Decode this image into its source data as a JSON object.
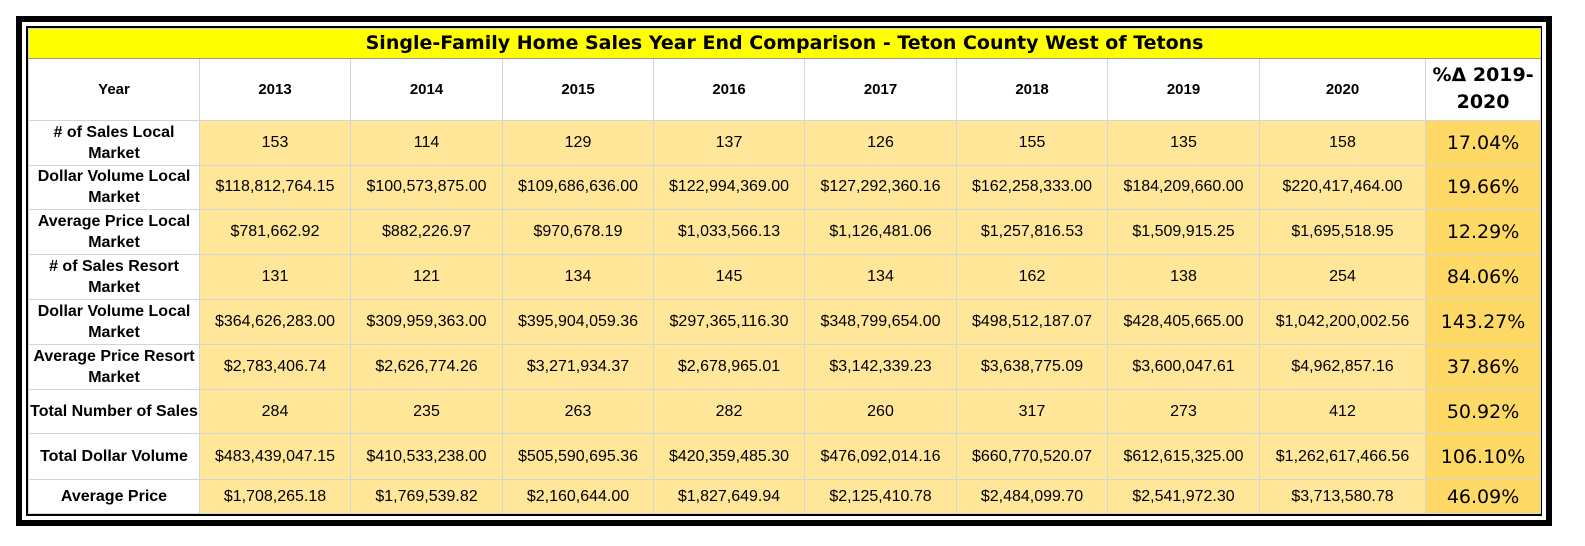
{
  "title": "Single-Family Home Sales Year End Comparison - Teton County West of Tetons",
  "header": {
    "year_label": "Year",
    "years": [
      "2013",
      "2014",
      "2015",
      "2016",
      "2017",
      "2018",
      "2019",
      "2020"
    ],
    "pct_label_line1": "%Δ 2019-",
    "pct_label_line2": "2020"
  },
  "rows": [
    {
      "label": "# of Sales Local Market",
      "values": [
        "153",
        "114",
        "129",
        "137",
        "126",
        "155",
        "135",
        "158"
      ],
      "pct": "17.04%"
    },
    {
      "label": "Dollar Volume Local Market",
      "values": [
        "$118,812,764.15",
        "$100,573,875.00",
        "$109,686,636.00",
        "$122,994,369.00",
        "$127,292,360.16",
        "$162,258,333.00",
        "$184,209,660.00",
        "$220,417,464.00"
      ],
      "pct": "19.66%"
    },
    {
      "label": "Average Price Local Market",
      "values": [
        "$781,662.92",
        "$882,226.97",
        "$970,678.19",
        "$1,033,566.13",
        "$1,126,481.06",
        "$1,257,816.53",
        "$1,509,915.25",
        "$1,695,518.95"
      ],
      "pct": "12.29%"
    },
    {
      "label": "# of Sales Resort Market",
      "values": [
        "131",
        "121",
        "134",
        "145",
        "134",
        "162",
        "138",
        "254"
      ],
      "pct": "84.06%"
    },
    {
      "label": "Dollar Volume Local Market",
      "values": [
        "$364,626,283.00",
        "$309,959,363.00",
        "$395,904,059.36",
        "$297,365,116.30",
        "$348,799,654.00",
        "$498,512,187.07",
        "$428,405,665.00",
        "$1,042,200,002.56"
      ],
      "pct": "143.27%"
    },
    {
      "label": "Average Price Resort Market",
      "values": [
        "$2,783,406.74",
        "$2,626,774.26",
        "$3,271,934.37",
        "$2,678,965.01",
        "$3,142,339.23",
        "$3,638,775.09",
        "$3,600,047.61",
        "$4,962,857.16"
      ],
      "pct": "37.86%"
    },
    {
      "label": "Total Number of Sales",
      "values": [
        "284",
        "235",
        "263",
        "282",
        "260",
        "317",
        "273",
        "412"
      ],
      "pct": "50.92%"
    },
    {
      "label": "Total Dollar Volume",
      "values": [
        "$483,439,047.15",
        "$410,533,238.00",
        "$505,590,695.36",
        "$420,359,485.30",
        "$476,092,014.16",
        "$660,770,520.07",
        "$612,615,325.00",
        "$1,262,617,466.56"
      ],
      "pct": "106.10%"
    },
    {
      "label": "Average Price",
      "values": [
        "$1,708,265.18",
        "$1,769,539.82",
        "$2,160,644.00",
        "$1,827,649.94",
        "$2,125,410.78",
        "$2,484,099.70",
        "$2,541,972.30",
        "$3,713,580.78"
      ],
      "pct": "46.09%"
    }
  ],
  "colors": {
    "title_fill": "#ffff00",
    "value_fill": "#ffe699",
    "pct_fill": "#ffd966",
    "frame": "#000000"
  }
}
